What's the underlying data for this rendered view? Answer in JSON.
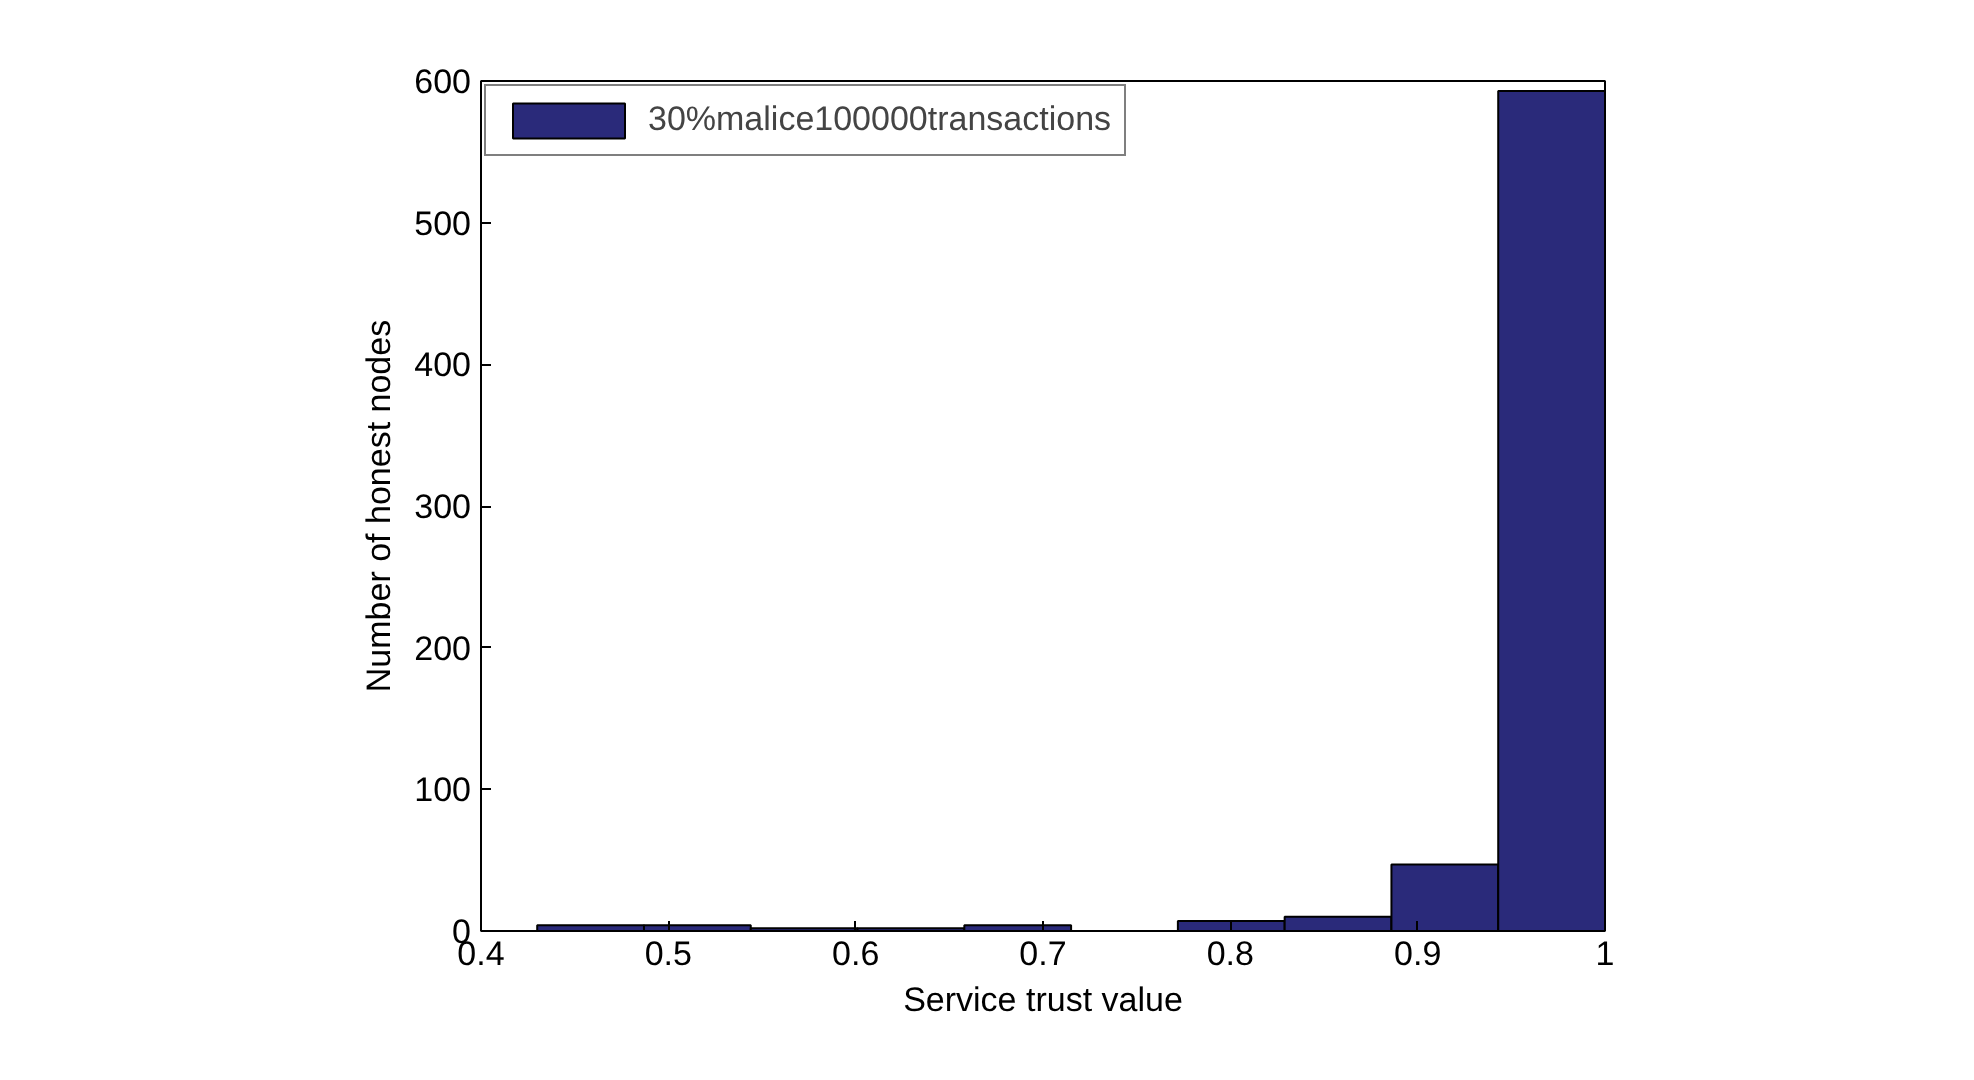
{
  "chart_data": {
    "type": "histogram",
    "xlabel": "Service trust value",
    "ylabel": "Number of honest nodes",
    "bins": [
      0.43,
      0.487,
      0.544,
      0.601,
      0.658,
      0.715,
      0.772,
      0.829,
      0.886,
      0.943,
      1.0
    ],
    "series": [
      {
        "name": "30%malice100000transactions",
        "color": "#2a2a7a",
        "values": [
          4,
          4,
          2,
          2,
          4,
          0,
          7,
          10,
          47,
          593
        ]
      }
    ],
    "xlim": [
      0.4,
      1
    ],
    "xticks": [
      {
        "value": 0.4,
        "label": "0.4"
      },
      0.5,
      0.6,
      0.7,
      0.8,
      0.9,
      1
    ],
    "ylim": [
      0,
      600
    ],
    "yticks": [
      0,
      100,
      200,
      300,
      400,
      500,
      600
    ],
    "grid": false,
    "legend": "top left"
  }
}
